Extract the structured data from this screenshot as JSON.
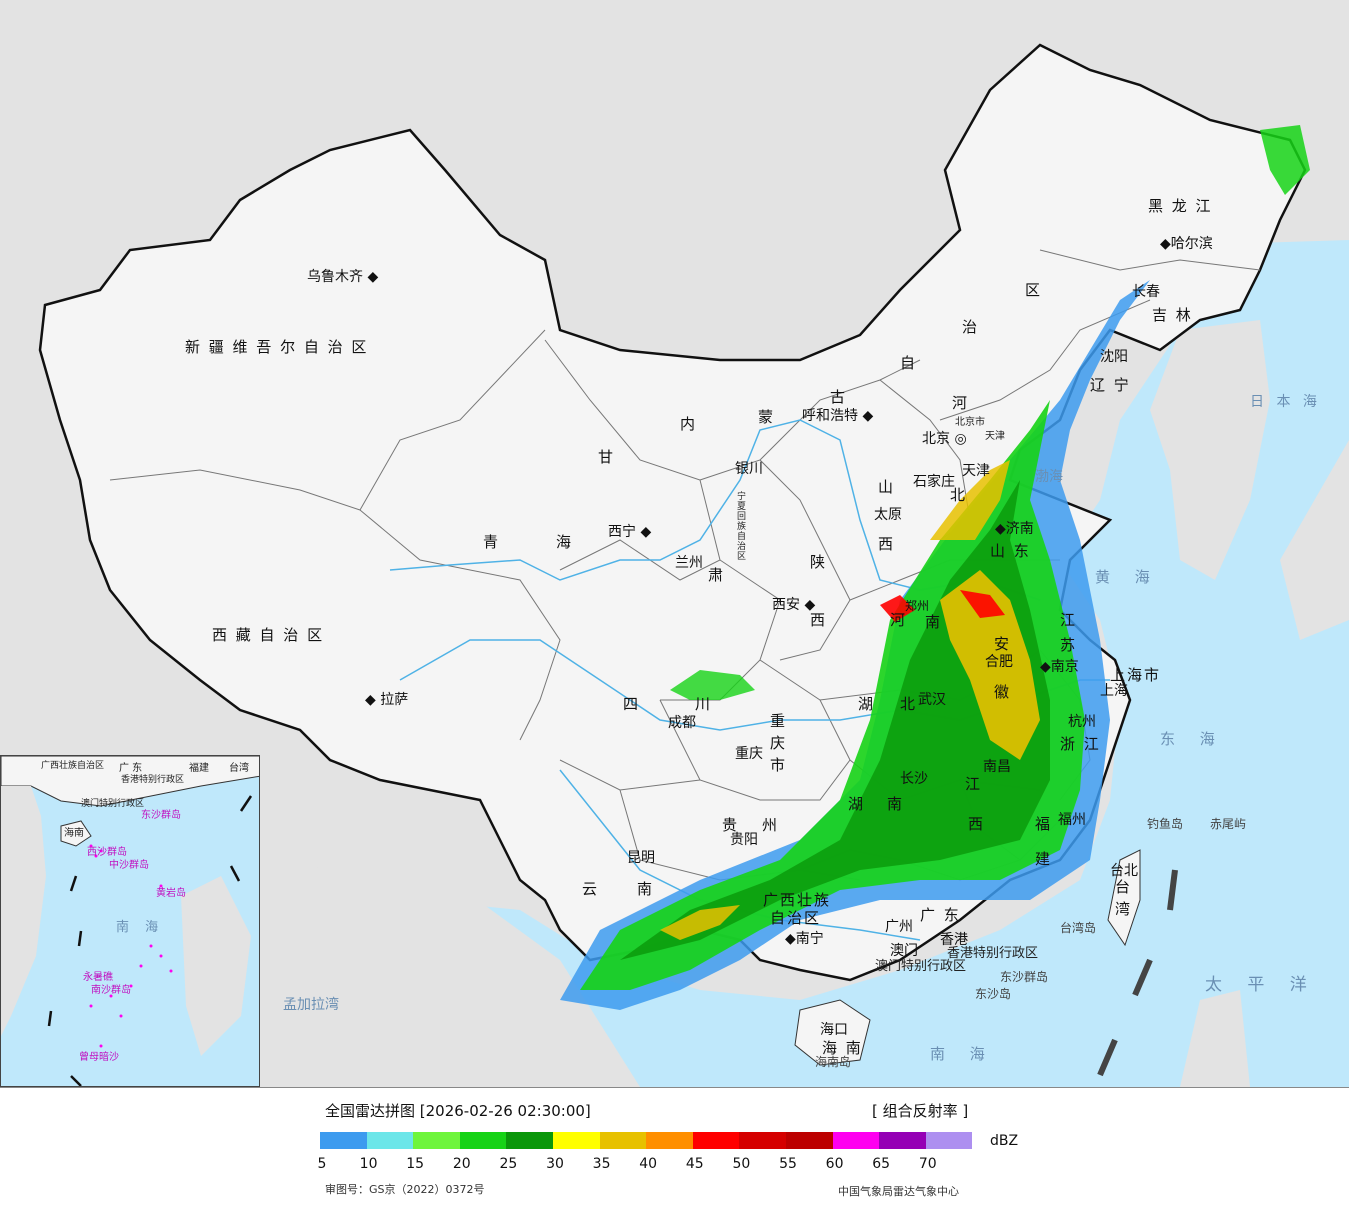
{
  "title": "全国雷达拼图 [2026-02-26 02:30:00]",
  "product": "[ 组合反射率 ]",
  "unit": "dBZ",
  "review_number": "审图号：GS京（2022）0372号",
  "organization": "中国气象局雷达气象中心",
  "legend": {
    "colors": [
      "#3d9bef",
      "#6ce6e9",
      "#6ef53c",
      "#16d316",
      "#0a970a",
      "#ffff00",
      "#e7c100",
      "#ff8f00",
      "#ff0000",
      "#d50000",
      "#bc0000",
      "#ff00f0",
      "#9500b5",
      "#ad8ff0"
    ],
    "ticks": [
      "5",
      "10",
      "15",
      "20",
      "25",
      "30",
      "35",
      "40",
      "45",
      "50",
      "55",
      "60",
      "65",
      "70"
    ]
  },
  "colors": {
    "land": "#f5f5f5",
    "ocean": "#bfe8fb",
    "outside": "#e3e3e3",
    "rain_light": "#3d9bef",
    "rain_moderate": "#16d316",
    "rain_heavy": "#e7c100",
    "rain_intense": "#ff0000"
  },
  "provinces": {
    "xinjiang": "新 疆 维 吾 尔 自 治 区",
    "xizang": "西 藏 自 治 区",
    "qinghai_a": "青",
    "qinghai_b": "海",
    "gansu_a": "甘",
    "gansu_b": "肃",
    "neimenggu_a": "内",
    "neimenggu_b": "蒙",
    "neimenggu_c": "古",
    "neimenggu_d": "自",
    "neimenggu_e": "治",
    "neimenggu_f": "区",
    "heilongjiang": "黑 龙 江",
    "jilin": "吉 林",
    "liaoning": "辽 宁",
    "hebei_a": "河",
    "hebei_b": "北",
    "shanxi_a": "山",
    "shanxi_b": "西",
    "shaanxi_a": "陕",
    "shaanxi_b": "西",
    "shandong": "山 东",
    "henan_a": "河",
    "henan_b": "南",
    "jiangsu_a": "江",
    "jiangsu_b": "苏",
    "anhui_a": "安",
    "anhui_b": "徽",
    "zhejiang": "浙 江",
    "hubei_a": "湖",
    "hubei_b": "北",
    "hunan_a": "湖",
    "hunan_b": "南",
    "jiangxi_a": "江",
    "jiangxi_b": "西",
    "fujian_a": "福",
    "fujian_b": "建",
    "sichuan_a": "四",
    "sichuan_b": "川",
    "chongqing": "重 庆 市",
    "guizhou_a": "贵",
    "guizhou_b": "州",
    "yunnan_a": "云",
    "yunnan_b": "南",
    "guangxi_a": "广西壮族",
    "guangxi_b": "自治区",
    "guangdong": "广 东",
    "hainan": "海 南",
    "ningxia": "宁夏回族自治区",
    "taiwan_a": "台",
    "taiwan_b": "湾",
    "shanghai": "上海市",
    "tianjin": "天津",
    "beijing_city": "北京市",
    "hk": "香港特别行政区",
    "macau": "澳门特别行政区"
  },
  "cities": {
    "urumqi": "乌鲁木齐",
    "lhasa": "拉萨",
    "xining": "西宁",
    "lanzhou": "兰州",
    "yinchuan": "银川",
    "hohhot": "呼和浩特",
    "beijing": "北京",
    "tianjin": "天津",
    "shijiazhuang": "石家庄",
    "taiyuan": "太原",
    "jinan": "济南",
    "zhengzhou": "郑州",
    "xian": "西安",
    "chengdu": "成都",
    "chongqing": "重庆",
    "wuhan": "武汉",
    "hefei": "合肥",
    "nanjing": "南京",
    "shanghai": "上海",
    "hangzhou": "杭州",
    "nanchang": "南昌",
    "changsha": "长沙",
    "fuzhou": "福州",
    "guiyang": "贵阳",
    "kunming": "昆明",
    "nanning": "南宁",
    "guangzhou": "广州",
    "hongkong": "香港",
    "macau": "澳门",
    "haikou": "海口",
    "taipei": "台北",
    "shenyang": "沈阳",
    "changchun": "长春",
    "harbin": "哈尔滨"
  },
  "seas": {
    "bohai": "渤海",
    "huanghai": "黄 海",
    "donghai": "东 海",
    "nanhai": "南 海",
    "japan": "日 本 海",
    "pacific": "太 平 洋",
    "bengal": "孟加拉湾"
  },
  "islands": {
    "diaoyu": "钓鱼岛",
    "chiwei": "赤尾屿",
    "dongsha": "东沙群岛",
    "dongsha_dao": "东沙岛",
    "hainan_dao": "海南岛",
    "taiwan_dao": "台湾岛"
  },
  "inset": {
    "guangxi": "广西壮族自治区",
    "guangdong": "广 东",
    "fujian": "福建",
    "taiwan": "台湾",
    "hk": "香港特别行政区",
    "macau": "澳门特别行政区",
    "hainan": "海南",
    "dongsha": "东沙群岛",
    "xisha": "西沙群岛",
    "zhongsha": "中沙群岛",
    "huangyan": "黄岩岛",
    "nansha": "南沙群岛",
    "nanhai": "南 海",
    "yongshu": "永暑礁",
    "zengmu": "曾母暗沙"
  }
}
